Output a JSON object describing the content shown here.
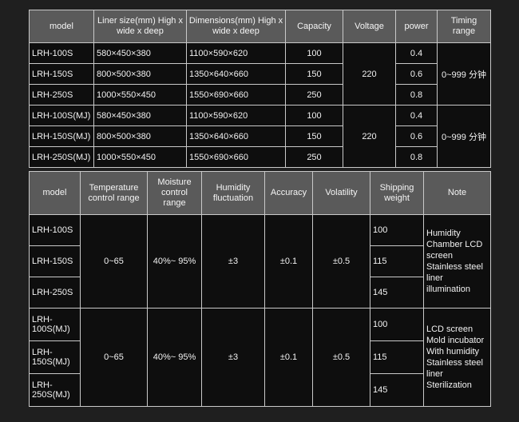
{
  "table1": {
    "headers": [
      "model",
      "Liner size(mm) High x wide x deep",
      "Dimensions(mm) High x wide x deep",
      "Capacity",
      "Voltage",
      "power",
      "Timing range"
    ],
    "rows": [
      {
        "model": "LRH-100S",
        "liner": "580×450×380",
        "dims": "1100×590×620",
        "capacity": "100",
        "power": "0.4"
      },
      {
        "model": "LRH-150S",
        "liner": "800×500×380",
        "dims": "1350×640×660",
        "capacity": "150",
        "power": "0.6"
      },
      {
        "model": "LRH-250S",
        "liner": "1000×550×450",
        "dims": "1550×690×660",
        "capacity": "250",
        "power": "0.8"
      },
      {
        "model": "LRH-100S(MJ)",
        "liner": "580×450×380",
        "dims": "1100×590×620",
        "capacity": "100",
        "power": "0.4"
      },
      {
        "model": "LRH-150S(MJ)",
        "liner": "800×500×380",
        "dims": "1350×640×660",
        "capacity": "150",
        "power": "0.6"
      },
      {
        "model": "LRH-250S(MJ)",
        "liner": "1000×550×450",
        "dims": "1550×690×660",
        "capacity": "250",
        "power": "0.8"
      }
    ],
    "voltage": "220",
    "timing": "0~999 分钟"
  },
  "table2": {
    "headers": [
      "model",
      "Temperature control range",
      "Moisture control range",
      "Humidity fluctuation",
      "Accuracy",
      "Volatility",
      "Shipping weight",
      "Note"
    ],
    "groups": [
      {
        "models": [
          "LRH-100S",
          "LRH-150S",
          "LRH-250S"
        ],
        "temp": "0~65",
        "moisture": "40%~ 95%",
        "fluct": "±3",
        "accuracy": "±0.1",
        "volatility": "±0.5",
        "weights": [
          "100",
          "115",
          "145"
        ],
        "note": "Humidity Chamber LCD screen Stainless steel liner illumination"
      },
      {
        "models": [
          "LRH- 100S(MJ)",
          "LRH- 150S(MJ)",
          "LRH- 250S(MJ)"
        ],
        "temp": "0~65",
        "moisture": "40%~ 95%",
        "fluct": "±3",
        "accuracy": "±0.1",
        "volatility": "±0.5",
        "weights": [
          "100",
          "115",
          "145"
        ],
        "note": "LCD screen Mold incubator With humidity Stainless steel liner Sterilization"
      }
    ]
  }
}
